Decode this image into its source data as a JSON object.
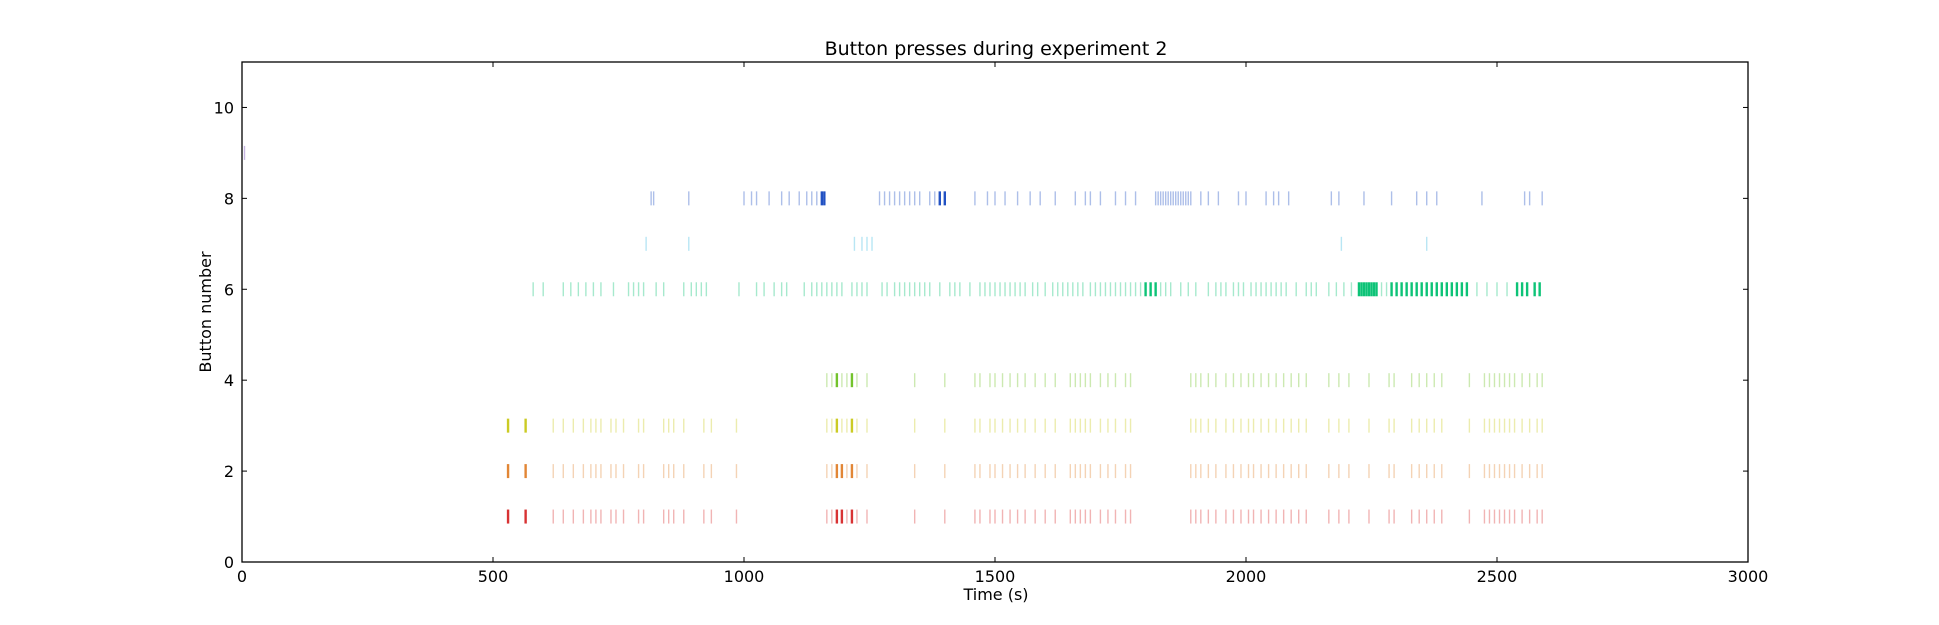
{
  "chart_data": {
    "type": "scatter",
    "title": "Button presses during experiment 2",
    "xlabel": "Time (s)",
    "ylabel": "Button number",
    "xlim": [
      0,
      3000
    ],
    "ylim": [
      0,
      11
    ],
    "xticks": [
      0,
      500,
      1000,
      1500,
      2000,
      2500,
      3000
    ],
    "yticks": [
      0,
      2,
      4,
      6,
      8,
      10
    ],
    "grid": false,
    "marker": "vertical-tick",
    "series": [
      {
        "button": 1,
        "color": "#d62728",
        "emphasis_times": [
          530,
          565,
          1185,
          1195,
          1215
        ],
        "times": [
          530,
          565,
          620,
          640,
          660,
          680,
          695,
          705,
          715,
          735,
          745,
          760,
          790,
          800,
          840,
          850,
          860,
          880,
          920,
          935,
          985,
          1165,
          1175,
          1185,
          1195,
          1205,
          1215,
          1225,
          1245,
          1340,
          1400,
          1460,
          1470,
          1490,
          1500,
          1515,
          1530,
          1545,
          1560,
          1580,
          1600,
          1620,
          1650,
          1660,
          1670,
          1680,
          1690,
          1710,
          1725,
          1740,
          1760,
          1770,
          1890,
          1900,
          1910,
          1925,
          1940,
          1960,
          1975,
          1990,
          2005,
          2015,
          2030,
          2045,
          2060,
          2075,
          2090,
          2105,
          2120,
          2165,
          2185,
          2205,
          2245,
          2285,
          2295,
          2330,
          2345,
          2360,
          2375,
          2390,
          2445,
          2475,
          2485,
          2495,
          2505,
          2515,
          2525,
          2535,
          2550,
          2565,
          2580,
          2590
        ]
      },
      {
        "button": 2,
        "color": "#e0802a",
        "emphasis_times": [
          530,
          565,
          1185,
          1195,
          1215
        ],
        "times": [
          530,
          565,
          620,
          640,
          660,
          680,
          695,
          705,
          715,
          735,
          745,
          760,
          790,
          800,
          840,
          850,
          860,
          880,
          920,
          935,
          985,
          1165,
          1175,
          1185,
          1195,
          1205,
          1215,
          1225,
          1245,
          1340,
          1400,
          1460,
          1470,
          1490,
          1500,
          1515,
          1530,
          1545,
          1560,
          1580,
          1600,
          1620,
          1650,
          1660,
          1670,
          1680,
          1690,
          1710,
          1725,
          1740,
          1760,
          1770,
          1890,
          1900,
          1910,
          1925,
          1940,
          1960,
          1975,
          1990,
          2005,
          2015,
          2030,
          2045,
          2060,
          2075,
          2090,
          2105,
          2120,
          2165,
          2185,
          2205,
          2245,
          2285,
          2295,
          2330,
          2345,
          2360,
          2375,
          2390,
          2445,
          2475,
          2485,
          2495,
          2505,
          2515,
          2525,
          2535,
          2550,
          2565,
          2580,
          2590
        ]
      },
      {
        "button": 3,
        "color": "#c8c818",
        "emphasis_times": [
          530,
          565,
          1185,
          1215
        ],
        "times": [
          530,
          565,
          620,
          640,
          660,
          680,
          695,
          705,
          715,
          735,
          745,
          760,
          790,
          800,
          840,
          850,
          860,
          880,
          920,
          935,
          985,
          1165,
          1175,
          1185,
          1195,
          1205,
          1215,
          1225,
          1245,
          1340,
          1400,
          1460,
          1470,
          1490,
          1500,
          1515,
          1530,
          1545,
          1560,
          1580,
          1600,
          1620,
          1650,
          1660,
          1670,
          1680,
          1690,
          1710,
          1725,
          1740,
          1760,
          1770,
          1890,
          1900,
          1910,
          1925,
          1940,
          1960,
          1975,
          1990,
          2005,
          2015,
          2030,
          2045,
          2060,
          2075,
          2090,
          2105,
          2120,
          2165,
          2185,
          2205,
          2245,
          2285,
          2295,
          2330,
          2345,
          2360,
          2375,
          2390,
          2445,
          2475,
          2485,
          2495,
          2505,
          2515,
          2525,
          2535,
          2550,
          2565,
          2580,
          2590
        ]
      },
      {
        "button": 4,
        "color": "#6cc020",
        "emphasis_times": [
          1185,
          1215
        ],
        "times": [
          1165,
          1175,
          1185,
          1195,
          1205,
          1215,
          1225,
          1245,
          1340,
          1400,
          1460,
          1470,
          1490,
          1500,
          1515,
          1530,
          1545,
          1560,
          1580,
          1600,
          1620,
          1650,
          1660,
          1670,
          1680,
          1690,
          1710,
          1725,
          1740,
          1760,
          1770,
          1890,
          1900,
          1910,
          1925,
          1940,
          1960,
          1975,
          1990,
          2005,
          2015,
          2030,
          2045,
          2060,
          2075,
          2090,
          2105,
          2120,
          2165,
          2185,
          2205,
          2245,
          2285,
          2295,
          2330,
          2345,
          2360,
          2375,
          2390,
          2445,
          2475,
          2485,
          2495,
          2505,
          2515,
          2525,
          2535,
          2550,
          2565,
          2580,
          2590
        ]
      },
      {
        "button": 6,
        "color": "#00c070",
        "emphasis_times": [
          1800,
          1810,
          1820,
          2225,
          2230,
          2235,
          2240,
          2245,
          2250,
          2255,
          2260,
          2290,
          2300,
          2310,
          2320,
          2330,
          2340,
          2350,
          2360,
          2370,
          2380,
          2390,
          2400,
          2410,
          2420,
          2430,
          2440,
          2540,
          2550,
          2560,
          2575,
          2585
        ],
        "times": [
          580,
          600,
          640,
          655,
          670,
          685,
          700,
          715,
          740,
          770,
          780,
          790,
          800,
          825,
          840,
          880,
          895,
          905,
          915,
          925,
          990,
          1025,
          1040,
          1060,
          1075,
          1085,
          1120,
          1135,
          1145,
          1155,
          1165,
          1175,
          1185,
          1195,
          1215,
          1225,
          1235,
          1245,
          1275,
          1285,
          1300,
          1310,
          1320,
          1330,
          1340,
          1350,
          1360,
          1370,
          1390,
          1410,
          1420,
          1430,
          1450,
          1470,
          1480,
          1490,
          1500,
          1510,
          1520,
          1530,
          1540,
          1550,
          1560,
          1575,
          1585,
          1600,
          1615,
          1625,
          1635,
          1645,
          1655,
          1665,
          1675,
          1690,
          1700,
          1710,
          1720,
          1730,
          1740,
          1750,
          1760,
          1770,
          1780,
          1790,
          1800,
          1810,
          1820,
          1830,
          1840,
          1850,
          1870,
          1885,
          1900,
          1925,
          1940,
          1950,
          1960,
          1975,
          1985,
          1995,
          2010,
          2020,
          2030,
          2040,
          2050,
          2060,
          2070,
          2080,
          2100,
          2120,
          2130,
          2140,
          2165,
          2180,
          2195,
          2210,
          2225,
          2230,
          2235,
          2240,
          2245,
          2250,
          2255,
          2260,
          2270,
          2280,
          2290,
          2300,
          2310,
          2320,
          2330,
          2340,
          2350,
          2360,
          2370,
          2380,
          2390,
          2400,
          2410,
          2420,
          2430,
          2440,
          2460,
          2480,
          2500,
          2520,
          2540,
          2550,
          2560,
          2575,
          2585
        ]
      },
      {
        "button": 7,
        "color": "#33b8e0",
        "emphasis_times": [],
        "times": [
          805,
          890,
          1220,
          1235,
          1245,
          1255,
          2190,
          2360
        ]
      },
      {
        "button": 8,
        "color": "#1548c0",
        "emphasis_times": [
          1155,
          1160,
          1390,
          1400
        ],
        "times": [
          815,
          820,
          890,
          1000,
          1015,
          1025,
          1050,
          1075,
          1090,
          1110,
          1125,
          1135,
          1145,
          1155,
          1160,
          1270,
          1280,
          1290,
          1300,
          1310,
          1320,
          1330,
          1340,
          1350,
          1370,
          1380,
          1390,
          1400,
          1460,
          1485,
          1500,
          1520,
          1545,
          1570,
          1590,
          1620,
          1660,
          1680,
          1690,
          1710,
          1740,
          1760,
          1780,
          1820,
          1825,
          1830,
          1835,
          1840,
          1845,
          1850,
          1855,
          1860,
          1865,
          1870,
          1875,
          1880,
          1885,
          1890,
          1910,
          1925,
          1945,
          1985,
          2000,
          2040,
          2055,
          2065,
          2085,
          2170,
          2185,
          2235,
          2290,
          2340,
          2360,
          2380,
          2470,
          2555,
          2565,
          2590
        ]
      },
      {
        "button": 9,
        "color": "#6030b0",
        "emphasis_times": [],
        "times": [
          5
        ]
      }
    ]
  }
}
